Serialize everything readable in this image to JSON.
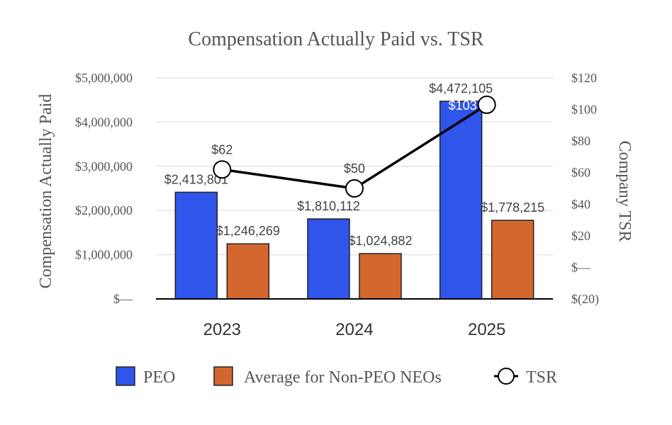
{
  "chart_data": {
    "type": "bar",
    "title": "Compensation Actually Paid vs. TSR",
    "categories": [
      "2023",
      "2024",
      "2025"
    ],
    "ylabel": "Compensation Actually Paid",
    "y2label": "Company TSR",
    "ylim": [
      0,
      5000000
    ],
    "y2lim": [
      -20,
      120
    ],
    "yticks": [
      "$—",
      "$1,000,000",
      "$2,000,000",
      "$3,000,000",
      "$4,000,000",
      "$5,000,000"
    ],
    "y2ticks": [
      "$(20)",
      "$—",
      "$20",
      "$40",
      "$60",
      "$80",
      "$100",
      "$120"
    ],
    "grid": true,
    "legend_position": "bottom",
    "series": [
      {
        "name": "PEO",
        "kind": "bar",
        "color": "#2f55ea",
        "values": [
          2413801,
          1810112,
          4472105
        ],
        "labels": [
          "$2,413,801",
          "$1,810,112",
          "$4,472,105"
        ]
      },
      {
        "name": "Average for Non-PEO NEOs",
        "kind": "bar",
        "color": "#d4672e",
        "values": [
          1246269,
          1024882,
          1778215
        ],
        "labels": [
          "$1,246,269",
          "$1,024,882",
          "$1,778,215"
        ]
      },
      {
        "name": "TSR",
        "kind": "line",
        "axis": "right",
        "color": "#000000",
        "values": [
          62,
          50,
          103
        ],
        "labels": [
          "$62",
          "$50",
          "$103"
        ]
      }
    ]
  }
}
